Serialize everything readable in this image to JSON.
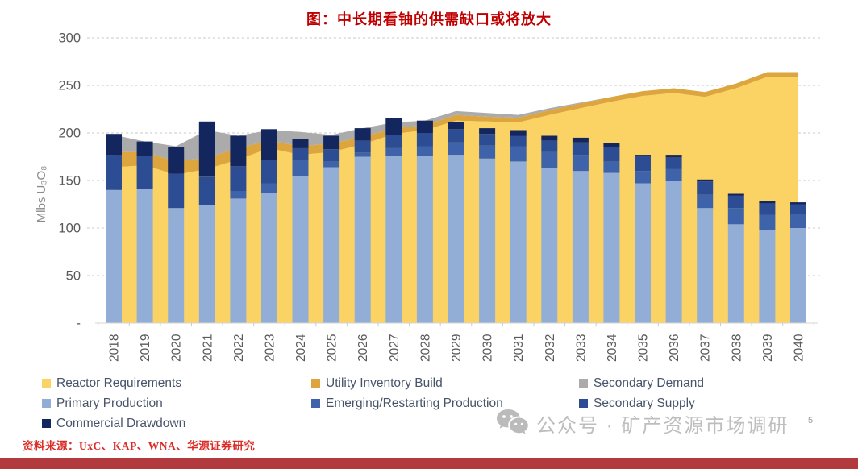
{
  "title": {
    "text": "图：中长期看铀的供需缺口或将放大",
    "color": "#C00000"
  },
  "source": {
    "text": "资料来源：UxC、KAP、WNA、华源证券研究",
    "color": "#DB2B27"
  },
  "watermark": {
    "icon": "wechat-icon",
    "text": "公众号 · 矿产资源市场调研"
  },
  "page_number": "5",
  "footer_bar_color": "#B23A3E",
  "chart_data": {
    "type": "combo: stacked bars (supply) over stacked area (demand)",
    "title": "中长期看铀的供需缺口或将放大 (uranium supply-demand gap widens)",
    "unit_label": "Mlbs U₃O₈",
    "ylim": [
      0,
      300
    ],
    "grid": "horizontal dashed",
    "legend_position": "bottom, 3 columns",
    "x": [
      2018,
      2019,
      2020,
      2021,
      2022,
      2023,
      2024,
      2025,
      2026,
      2027,
      2028,
      2029,
      2030,
      2031,
      2032,
      2033,
      2034,
      2035,
      2036,
      2037,
      2038,
      2039,
      2040
    ],
    "yticks": [
      {
        "label": "300",
        "value": 300
      },
      {
        "label": "250",
        "value": 250
      },
      {
        "label": "200",
        "value": 200
      },
      {
        "label": "150",
        "value": 150
      },
      {
        "label": "100",
        "value": 100
      },
      {
        "label": "50",
        "value": 50
      },
      {
        "label": "-",
        "value": 0
      }
    ],
    "area_series": [
      {
        "name": "Reactor Requirements",
        "color": "#FBD365",
        "values": [
          164,
          166,
          156,
          162,
          172,
          184,
          177,
          180,
          188,
          199,
          203,
          213,
          212,
          211,
          219,
          226,
          233,
          239,
          242,
          238,
          247,
          259,
          259
        ]
      },
      {
        "name": "Utility Inventory Build",
        "color": "#DCA53E",
        "values": [
          16,
          14,
          14,
          12,
          12,
          8,
          9,
          9,
          8,
          6,
          5,
          6,
          5,
          5,
          5,
          5,
          5,
          5,
          5,
          5,
          5,
          5,
          5
        ]
      },
      {
        "name": "Secondary Demand",
        "color": "#ABABAB",
        "values": [
          18,
          11,
          16,
          29,
          13,
          11,
          15,
          9,
          9,
          6,
          5,
          4,
          4,
          3,
          2,
          1,
          0,
          0,
          0,
          0,
          0,
          0,
          0
        ]
      }
    ],
    "bar_series": [
      {
        "name": "Primary Production",
        "color": "#92AED6",
        "values": [
          140,
          141,
          121,
          124,
          131,
          137,
          155,
          164,
          175,
          176,
          176,
          177,
          173,
          170,
          163,
          160,
          158,
          147,
          150,
          121,
          104,
          98,
          100
        ]
      },
      {
        "name": "Emerging/Restarting Production",
        "color": "#3E63AB",
        "values": [
          0,
          0,
          0,
          0,
          8,
          10,
          17,
          6,
          4,
          8,
          10,
          13,
          14,
          16,
          17,
          17,
          12,
          13,
          12,
          14,
          17,
          16,
          15
        ]
      },
      {
        "name": "Secondary Supply",
        "color": "#2C4D93",
        "values": [
          37,
          35,
          36,
          30,
          26,
          25,
          12,
          13,
          13,
          14,
          14,
          14,
          12,
          11,
          12,
          13,
          15,
          16,
          12,
          14,
          13,
          12,
          10
        ]
      },
      {
        "name": "Commercial Drawdown",
        "color": "#14265E",
        "values": [
          22,
          15,
          28,
          58,
          32,
          32,
          10,
          14,
          13,
          18,
          13,
          7,
          6,
          6,
          5,
          5,
          4,
          1,
          3,
          2,
          2,
          2,
          2
        ]
      }
    ],
    "legend": [
      {
        "name": "Reactor Requirements",
        "color": "#FBD365"
      },
      {
        "name": "Utility Inventory Build",
        "color": "#DCA53E"
      },
      {
        "name": "Secondary Demand",
        "color": "#ABABAB"
      },
      {
        "name": "Primary Production",
        "color": "#92AED6"
      },
      {
        "name": "Emerging/Restarting Production",
        "color": "#3E63AB"
      },
      {
        "name": "Secondary Supply",
        "color": "#2C4D93"
      },
      {
        "name": "Commercial Drawdown",
        "color": "#14265E"
      }
    ]
  }
}
